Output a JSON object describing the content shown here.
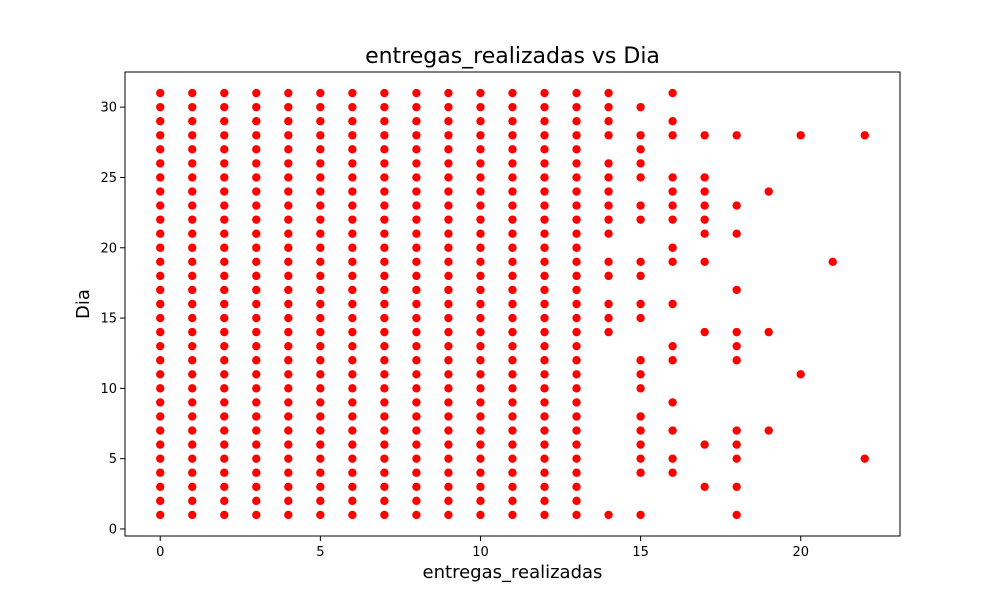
{
  "chart_data": {
    "type": "scatter",
    "title": "entregas_realizadas vs Dia",
    "xlabel": "entregas_realizadas",
    "ylabel": "Dia",
    "xlim": [
      -1.1,
      23.1
    ],
    "ylim": [
      -0.5,
      32.5
    ],
    "xticks": [
      0,
      5,
      10,
      15,
      20
    ],
    "yticks": [
      0,
      5,
      10,
      15,
      20,
      25,
      30
    ],
    "grid": false,
    "marker_color": "#ff0000",
    "points_by_x": [
      {
        "x": 0,
        "days": [
          1,
          2,
          3,
          4,
          5,
          6,
          7,
          8,
          9,
          10,
          11,
          12,
          13,
          14,
          15,
          16,
          17,
          18,
          19,
          20,
          21,
          22,
          23,
          24,
          25,
          26,
          27,
          28,
          29,
          30,
          31
        ]
      },
      {
        "x": 1,
        "days": [
          1,
          2,
          3,
          4,
          5,
          6,
          7,
          8,
          9,
          10,
          11,
          12,
          13,
          14,
          15,
          16,
          17,
          18,
          19,
          20,
          21,
          22,
          23,
          24,
          25,
          26,
          27,
          28,
          29,
          30,
          31
        ]
      },
      {
        "x": 2,
        "days": [
          1,
          2,
          3,
          4,
          5,
          6,
          7,
          8,
          9,
          10,
          11,
          12,
          13,
          14,
          15,
          16,
          17,
          18,
          19,
          20,
          21,
          22,
          23,
          24,
          25,
          26,
          27,
          28,
          29,
          30,
          31
        ]
      },
      {
        "x": 3,
        "days": [
          1,
          2,
          3,
          4,
          5,
          6,
          7,
          8,
          9,
          10,
          11,
          12,
          13,
          14,
          15,
          16,
          17,
          18,
          19,
          20,
          21,
          22,
          23,
          24,
          25,
          26,
          27,
          28,
          29,
          30,
          31
        ]
      },
      {
        "x": 4,
        "days": [
          1,
          2,
          3,
          4,
          5,
          6,
          7,
          8,
          9,
          10,
          11,
          12,
          13,
          14,
          15,
          16,
          17,
          18,
          19,
          20,
          21,
          22,
          23,
          24,
          25,
          26,
          27,
          28,
          29,
          30,
          31
        ]
      },
      {
        "x": 5,
        "days": [
          1,
          2,
          3,
          4,
          5,
          6,
          7,
          8,
          9,
          10,
          11,
          12,
          13,
          14,
          15,
          16,
          17,
          18,
          19,
          20,
          21,
          22,
          23,
          24,
          25,
          26,
          27,
          28,
          29,
          30,
          31
        ]
      },
      {
        "x": 6,
        "days": [
          1,
          2,
          3,
          4,
          5,
          6,
          7,
          8,
          9,
          10,
          11,
          12,
          13,
          14,
          15,
          16,
          17,
          18,
          19,
          20,
          21,
          22,
          23,
          24,
          25,
          26,
          27,
          28,
          29,
          30,
          31
        ]
      },
      {
        "x": 7,
        "days": [
          1,
          2,
          3,
          4,
          5,
          6,
          7,
          8,
          9,
          10,
          11,
          12,
          13,
          14,
          15,
          16,
          17,
          18,
          19,
          20,
          21,
          22,
          23,
          24,
          25,
          26,
          27,
          28,
          29,
          30,
          31
        ]
      },
      {
        "x": 8,
        "days": [
          1,
          2,
          3,
          4,
          5,
          6,
          7,
          8,
          9,
          10,
          11,
          12,
          13,
          14,
          15,
          16,
          17,
          18,
          19,
          20,
          21,
          22,
          23,
          24,
          25,
          26,
          27,
          28,
          29,
          30,
          31
        ]
      },
      {
        "x": 9,
        "days": [
          1,
          2,
          3,
          4,
          5,
          6,
          7,
          8,
          9,
          10,
          11,
          12,
          13,
          14,
          15,
          16,
          17,
          18,
          19,
          20,
          21,
          22,
          23,
          24,
          25,
          26,
          27,
          28,
          29,
          30,
          31
        ]
      },
      {
        "x": 10,
        "days": [
          1,
          2,
          3,
          4,
          5,
          6,
          7,
          8,
          9,
          10,
          11,
          12,
          13,
          14,
          15,
          16,
          17,
          18,
          19,
          20,
          21,
          22,
          23,
          24,
          25,
          26,
          27,
          28,
          29,
          30,
          31
        ]
      },
      {
        "x": 11,
        "days": [
          1,
          2,
          3,
          4,
          5,
          6,
          7,
          8,
          9,
          10,
          11,
          12,
          13,
          14,
          15,
          16,
          17,
          18,
          19,
          20,
          21,
          22,
          23,
          24,
          25,
          26,
          27,
          28,
          29,
          30,
          31
        ]
      },
      {
        "x": 12,
        "days": [
          1,
          2,
          3,
          4,
          5,
          6,
          7,
          8,
          9,
          10,
          11,
          12,
          13,
          14,
          15,
          16,
          17,
          18,
          19,
          20,
          21,
          22,
          23,
          24,
          25,
          26,
          27,
          28,
          29,
          30,
          31
        ]
      },
      {
        "x": 13,
        "days": [
          1,
          2,
          3,
          4,
          5,
          6,
          7,
          8,
          9,
          10,
          11,
          12,
          13,
          14,
          15,
          16,
          17,
          18,
          19,
          20,
          21,
          22,
          23,
          24,
          25,
          26,
          27,
          28,
          29,
          30,
          31
        ]
      },
      {
        "x": 14,
        "days": [
          1,
          14,
          15,
          16,
          18,
          19,
          21,
          22,
          23,
          24,
          25,
          26,
          28,
          29,
          30,
          31
        ]
      },
      {
        "x": 15,
        "days": [
          1,
          4,
          5,
          6,
          7,
          8,
          10,
          11,
          12,
          15,
          16,
          18,
          19,
          22,
          23,
          25,
          26,
          27,
          28,
          30
        ]
      },
      {
        "x": 16,
        "days": [
          4,
          5,
          7,
          9,
          12,
          13,
          16,
          19,
          20,
          22,
          23,
          24,
          25,
          28,
          29,
          31
        ]
      },
      {
        "x": 17,
        "days": [
          3,
          6,
          14,
          19,
          21,
          22,
          23,
          24,
          25,
          28
        ]
      },
      {
        "x": 18,
        "days": [
          1,
          3,
          5,
          6,
          7,
          12,
          13,
          14,
          17,
          21,
          23,
          28
        ]
      },
      {
        "x": 19,
        "days": [
          7,
          14,
          24
        ]
      },
      {
        "x": 20,
        "days": [
          11,
          28
        ]
      },
      {
        "x": 21,
        "days": [
          19
        ]
      },
      {
        "x": 22,
        "days": [
          5,
          28
        ]
      }
    ]
  }
}
